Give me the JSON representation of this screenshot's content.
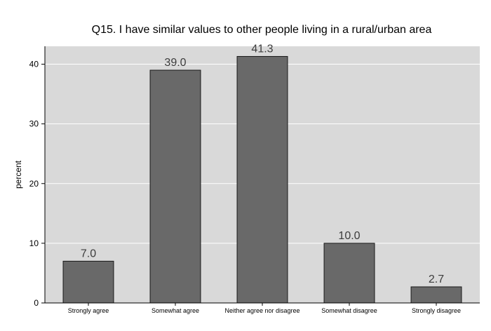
{
  "chart_data": {
    "type": "bar",
    "title": "Q15. I have similar values to other people living in a rural/urban area",
    "xlabel": "",
    "ylabel": "percent",
    "categories": [
      "Strongly agree",
      "Somewhat agree",
      "Neither agree nor disagree",
      "Somewhat disagree",
      "Strongly disagree"
    ],
    "values": [
      7.0,
      39.0,
      41.3,
      10.0,
      2.7
    ],
    "value_labels": [
      "7.0",
      "39.0",
      "41.3",
      "10.0",
      "2.7"
    ],
    "yticks": [
      0,
      10,
      20,
      30,
      40
    ],
    "ylim": [
      0,
      43
    ],
    "grid": true,
    "colors": {
      "plot_background": "#d9d9d9",
      "bar_fill": "#696969",
      "bar_stroke": "#1a1a1a",
      "grid": "#ffffff",
      "text": "#000000",
      "value_label": "#3c3c3c"
    }
  }
}
